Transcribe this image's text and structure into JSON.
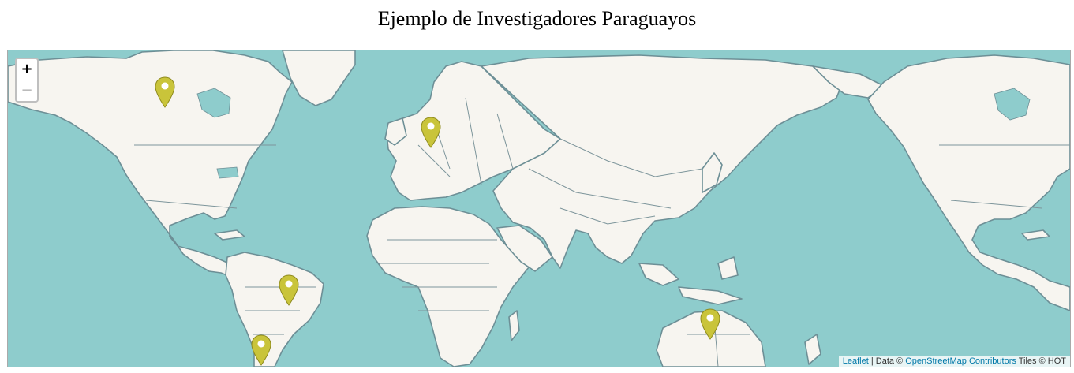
{
  "title": "Ejemplo de Investigadores Paraguayos",
  "zoom": {
    "in_label": "+",
    "out_label": "−"
  },
  "attribution": {
    "leaflet": "Leaflet",
    "sep": " | Data © ",
    "osm": "OpenStreetMap Contributors",
    "tiles": " Tiles © HOT"
  },
  "colors": {
    "water": "#8ecccc",
    "land": "#f7f5f0",
    "marker": "#c9c43a"
  },
  "markers": [
    {
      "name": "marker-canada",
      "icon": "map-pin-icon"
    },
    {
      "name": "marker-europe",
      "icon": "map-pin-icon"
    },
    {
      "name": "marker-brazil",
      "icon": "map-pin-icon"
    },
    {
      "name": "marker-paraguay",
      "icon": "map-pin-icon"
    },
    {
      "name": "marker-australia",
      "icon": "map-pin-icon"
    }
  ]
}
